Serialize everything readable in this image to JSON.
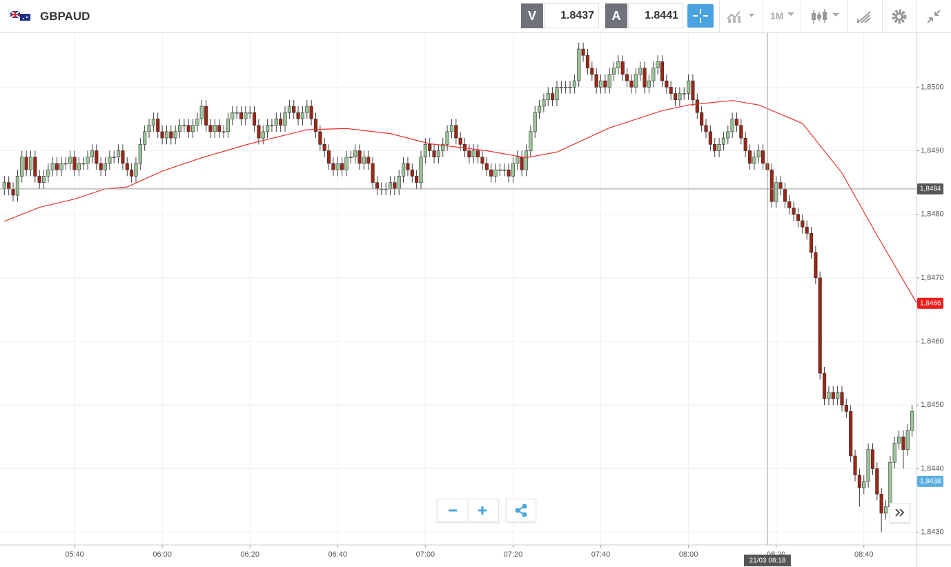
{
  "header": {
    "symbol": "GBPAUD",
    "sell_label": "V",
    "sell": 1.8437,
    "buy_label": "A",
    "buy": 1.8441,
    "timeframe": "1M"
  },
  "chart_data": {
    "type": "candlestick",
    "x": [
      "05:24",
      "05:25",
      "05:26",
      "05:27",
      "05:28",
      "05:29",
      "05:30",
      "05:31",
      "05:32",
      "05:33",
      "05:34",
      "05:35",
      "05:36",
      "05:37",
      "05:38",
      "05:39",
      "05:40",
      "05:41",
      "05:42",
      "05:43",
      "05:44",
      "05:45",
      "05:46",
      "05:47",
      "05:48",
      "05:49",
      "05:50",
      "05:51",
      "05:52",
      "05:53",
      "05:54",
      "05:55",
      "05:56",
      "05:57",
      "05:58",
      "05:59",
      "06:00",
      "06:01",
      "06:02",
      "06:03",
      "06:04",
      "06:05",
      "06:06",
      "06:07",
      "06:08",
      "06:09",
      "06:10",
      "06:11",
      "06:12",
      "06:13",
      "06:14",
      "06:15",
      "06:16",
      "06:17",
      "06:18",
      "06:19",
      "06:20",
      "06:21",
      "06:22",
      "06:23",
      "06:24",
      "06:25",
      "06:26",
      "06:27",
      "06:28",
      "06:29",
      "06:30",
      "06:31",
      "06:32",
      "06:33",
      "06:34",
      "06:35",
      "06:36",
      "06:37",
      "06:38",
      "06:39",
      "06:40",
      "06:41",
      "06:42",
      "06:43",
      "06:44",
      "06:45",
      "06:46",
      "06:47",
      "06:48",
      "06:49",
      "06:50",
      "06:51",
      "06:52",
      "06:53",
      "06:54",
      "06:55",
      "06:56",
      "06:57",
      "06:58",
      "06:59",
      "07:00",
      "07:01",
      "07:02",
      "07:03",
      "07:04",
      "07:05",
      "07:06",
      "07:07",
      "07:08",
      "07:09",
      "07:10",
      "07:11",
      "07:12",
      "07:13",
      "07:14",
      "07:15",
      "07:16",
      "07:17",
      "07:18",
      "07:19",
      "07:20",
      "07:21",
      "07:22",
      "07:23",
      "07:24",
      "07:25",
      "07:26",
      "07:27",
      "07:28",
      "07:29",
      "07:30",
      "07:31",
      "07:32",
      "07:33",
      "07:34",
      "07:35",
      "07:36",
      "07:37",
      "07:38",
      "07:39",
      "07:40",
      "07:41",
      "07:42",
      "07:43",
      "07:44",
      "07:45",
      "07:46",
      "07:47",
      "07:48",
      "07:49",
      "07:50",
      "07:51",
      "07:52",
      "07:53",
      "07:54",
      "07:55",
      "07:56",
      "07:57",
      "07:58",
      "07:59",
      "08:00",
      "08:01",
      "08:02",
      "08:03",
      "08:04",
      "08:05",
      "08:06",
      "08:07",
      "08:08",
      "08:09",
      "08:10",
      "08:11",
      "08:12",
      "08:13",
      "08:14",
      "08:15",
      "08:16",
      "08:17",
      "08:18",
      "08:19",
      "08:20",
      "08:21",
      "08:22",
      "08:23",
      "08:24",
      "08:25",
      "08:26",
      "08:27",
      "08:28",
      "08:29",
      "08:30",
      "08:31",
      "08:32",
      "08:33",
      "08:34",
      "08:35",
      "08:36",
      "08:37",
      "08:38",
      "08:39",
      "08:40",
      "08:41",
      "08:42",
      "08:43",
      "08:44",
      "08:45",
      "08:46",
      "08:47",
      "08:48",
      "08:49",
      "08:50",
      "08:51"
    ],
    "open": [
      1.8484,
      1.8485,
      1.8484,
      1.8483,
      1.8486,
      1.8489,
      1.8487,
      1.8489,
      1.8486,
      1.8485,
      1.8486,
      1.8487,
      1.8488,
      1.8487,
      1.8488,
      1.8488,
      1.8489,
      1.8487,
      1.8488,
      1.8488,
      1.8489,
      1.849,
      1.8488,
      1.8487,
      1.8488,
      1.8489,
      1.8489,
      1.849,
      1.8488,
      1.8487,
      1.8486,
      1.8488,
      1.8491,
      1.8493,
      1.8494,
      1.8495,
      1.8493,
      1.8492,
      1.8493,
      1.8492,
      1.8493,
      1.8494,
      1.8494,
      1.8493,
      1.8494,
      1.8495,
      1.8497,
      1.8494,
      1.8493,
      1.8494,
      1.8493,
      1.8493,
      1.8495,
      1.8496,
      1.8496,
      1.8495,
      1.8496,
      1.8496,
      1.8494,
      1.8492,
      1.8493,
      1.8494,
      1.8494,
      1.8495,
      1.8494,
      1.8496,
      1.8497,
      1.8496,
      1.8495,
      1.8496,
      1.8497,
      1.8495,
      1.8493,
      1.8491,
      1.849,
      1.8488,
      1.8487,
      1.8488,
      1.8487,
      1.8489,
      1.8489,
      1.849,
      1.8488,
      1.8489,
      1.8488,
      1.8485,
      1.8484,
      1.8484,
      1.8484,
      1.8485,
      1.8484,
      1.8486,
      1.8488,
      1.8487,
      1.8486,
      1.8485,
      1.8489,
      1.8491,
      1.849,
      1.8489,
      1.849,
      1.8491,
      1.8493,
      1.8494,
      1.8492,
      1.8491,
      1.849,
      1.8489,
      1.849,
      1.8489,
      1.8488,
      1.8487,
      1.8486,
      1.8487,
      1.8487,
      1.8487,
      1.8486,
      1.8488,
      1.8489,
      1.8487,
      1.849,
      1.8493,
      1.8496,
      1.8497,
      1.8498,
      1.8499,
      1.8498,
      1.85,
      1.85,
      1.85,
      1.85,
      1.8501,
      1.8506,
      1.8505,
      1.8503,
      1.8502,
      1.85,
      1.8501,
      1.85,
      1.8502,
      1.8503,
      1.8504,
      1.8502,
      1.8501,
      1.85,
      1.8502,
      1.8503,
      1.85,
      1.8501,
      1.8503,
      1.8504,
      1.8501,
      1.85,
      1.8499,
      1.8498,
      1.8499,
      1.8499,
      1.8501,
      1.8498,
      1.8496,
      1.8494,
      1.8493,
      1.8491,
      1.849,
      1.8491,
      1.8492,
      1.8493,
      1.8495,
      1.8494,
      1.8492,
      1.849,
      1.8488,
      1.8489,
      1.849,
      1.8488,
      1.8487,
      1.8482,
      1.8485,
      1.8484,
      1.8482,
      1.8481,
      1.848,
      1.8479,
      1.8478,
      1.8477,
      1.8474,
      1.847,
      1.8455,
      1.8451,
      1.8452,
      1.8451,
      1.8452,
      1.845,
      1.8449,
      1.8442,
      1.8439,
      1.8437,
      1.8438,
      1.8443,
      1.844,
      1.8436,
      1.8433,
      1.8434,
      1.8441,
      1.8444,
      1.8445,
      1.8443,
      1.8446
    ],
    "high": [
      1.8486,
      1.8486,
      1.8485,
      1.8487,
      1.849,
      1.849,
      1.849,
      1.849,
      1.8487,
      1.8487,
      1.8488,
      1.8489,
      1.8489,
      1.8489,
      1.8489,
      1.849,
      1.849,
      1.8489,
      1.8489,
      1.849,
      1.8491,
      1.8491,
      1.8489,
      1.8489,
      1.849,
      1.849,
      1.8491,
      1.8491,
      1.8489,
      1.8488,
      1.8489,
      1.8492,
      1.8494,
      1.8495,
      1.8496,
      1.8496,
      1.8494,
      1.8494,
      1.8494,
      1.8494,
      1.8495,
      1.8495,
      1.8495,
      1.8495,
      1.8496,
      1.8498,
      1.8498,
      1.8495,
      1.8495,
      1.8495,
      1.8494,
      1.8496,
      1.8497,
      1.8497,
      1.8497,
      1.8497,
      1.8497,
      1.8497,
      1.8495,
      1.8494,
      1.8495,
      1.8495,
      1.8496,
      1.8496,
      1.8497,
      1.8498,
      1.8498,
      1.8497,
      1.8497,
      1.8498,
      1.8498,
      1.8496,
      1.8494,
      1.8492,
      1.8491,
      1.8489,
      1.8489,
      1.8489,
      1.849,
      1.849,
      1.8491,
      1.8491,
      1.849,
      1.849,
      1.8489,
      1.8486,
      1.8485,
      1.8485,
      1.8486,
      1.8486,
      1.8487,
      1.8489,
      1.8489,
      1.8488,
      1.8487,
      1.849,
      1.8492,
      1.8492,
      1.8491,
      1.8491,
      1.8492,
      1.8494,
      1.8495,
      1.8495,
      1.8493,
      1.8492,
      1.8491,
      1.8491,
      1.8491,
      1.849,
      1.8489,
      1.8488,
      1.8488,
      1.8488,
      1.8488,
      1.8488,
      1.8489,
      1.849,
      1.849,
      1.8491,
      1.8494,
      1.8497,
      1.8498,
      1.8499,
      1.85,
      1.85,
      1.8501,
      1.8501,
      1.8501,
      1.8501,
      1.8502,
      1.8507,
      1.8507,
      1.8506,
      1.8504,
      1.8503,
      1.8502,
      1.8502,
      1.8503,
      1.8504,
      1.8505,
      1.8505,
      1.8503,
      1.8502,
      1.8503,
      1.8504,
      1.8504,
      1.8502,
      1.8504,
      1.8505,
      1.8505,
      1.8502,
      1.8501,
      1.85,
      1.85,
      1.85,
      1.8502,
      1.8502,
      1.8499,
      1.8497,
      1.8495,
      1.8494,
      1.8492,
      1.8492,
      1.8493,
      1.8494,
      1.8496,
      1.8496,
      1.8495,
      1.8493,
      1.8491,
      1.849,
      1.8491,
      1.8491,
      1.8489,
      1.8488,
      1.8486,
      1.8486,
      1.8485,
      1.8483,
      1.8482,
      1.8481,
      1.848,
      1.8479,
      1.8478,
      1.8475,
      1.8471,
      1.8456,
      1.8453,
      1.8453,
      1.8453,
      1.8453,
      1.8451,
      1.845,
      1.8443,
      1.844,
      1.8439,
      1.8444,
      1.8444,
      1.8441,
      1.8437,
      1.8435,
      1.8442,
      1.8445,
      1.8446,
      1.8446,
      1.8447,
      1.845
    ],
    "low": [
      1.8483,
      1.8483,
      1.8482,
      1.8482,
      1.8485,
      1.8486,
      1.8486,
      1.8485,
      1.8484,
      1.8484,
      1.8485,
      1.8486,
      1.8486,
      1.8486,
      1.8487,
      1.8487,
      1.8486,
      1.8486,
      1.8487,
      1.8487,
      1.8488,
      1.8487,
      1.8486,
      1.8486,
      1.8487,
      1.8488,
      1.8488,
      1.8487,
      1.8486,
      1.8485,
      1.8485,
      1.8487,
      1.849,
      1.8492,
      1.8493,
      1.8492,
      1.8491,
      1.8491,
      1.8491,
      1.8491,
      1.8492,
      1.8493,
      1.8492,
      1.8492,
      1.8493,
      1.8494,
      1.8493,
      1.8492,
      1.8492,
      1.8492,
      1.8492,
      1.8492,
      1.8494,
      1.8495,
      1.8494,
      1.8494,
      1.8495,
      1.8493,
      1.8491,
      1.8491,
      1.8492,
      1.8493,
      1.8493,
      1.8493,
      1.8493,
      1.8495,
      1.8495,
      1.8494,
      1.8494,
      1.8495,
      1.8494,
      1.8492,
      1.849,
      1.8489,
      1.8487,
      1.8486,
      1.8486,
      1.8486,
      1.8486,
      1.8488,
      1.8488,
      1.8487,
      1.8487,
      1.8487,
      1.8484,
      1.8483,
      1.8483,
      1.8483,
      1.8483,
      1.8483,
      1.8483,
      1.8485,
      1.8486,
      1.8485,
      1.8484,
      1.8484,
      1.8488,
      1.8489,
      1.8488,
      1.8488,
      1.8489,
      1.849,
      1.8492,
      1.8491,
      1.849,
      1.8489,
      1.8488,
      1.8488,
      1.8488,
      1.8487,
      1.8486,
      1.8485,
      1.8485,
      1.8486,
      1.8486,
      1.8485,
      1.8485,
      1.8487,
      1.8486,
      1.8486,
      1.8489,
      1.8492,
      1.8495,
      1.8496,
      1.8497,
      1.8497,
      1.8497,
      1.8499,
      1.8499,
      1.8499,
      1.8499,
      1.85,
      1.8504,
      1.8502,
      1.8501,
      1.8499,
      1.8499,
      1.8499,
      1.8499,
      1.8501,
      1.8502,
      1.8501,
      1.85,
      1.8499,
      1.8499,
      1.8501,
      1.8499,
      1.8499,
      1.85,
      1.8502,
      1.85,
      1.8499,
      1.8498,
      1.8497,
      1.8497,
      1.8498,
      1.8498,
      1.8497,
      1.8495,
      1.8493,
      1.8492,
      1.849,
      1.8489,
      1.8489,
      1.849,
      1.8491,
      1.8492,
      1.8493,
      1.8491,
      1.8489,
      1.8487,
      1.8487,
      1.8488,
      1.8487,
      1.8486,
      1.8481,
      1.8481,
      1.8483,
      1.8481,
      1.848,
      1.8479,
      1.8478,
      1.8477,
      1.8476,
      1.8473,
      1.8469,
      1.8454,
      1.845,
      1.845,
      1.845,
      1.845,
      1.8449,
      1.8448,
      1.8441,
      1.8438,
      1.8434,
      1.8436,
      1.8437,
      1.8439,
      1.8435,
      1.843,
      1.8432,
      1.8433,
      1.844,
      1.8443,
      1.844,
      1.8442,
      1.8445
    ],
    "close": [
      1.8485,
      1.8484,
      1.8483,
      1.8486,
      1.8489,
      1.8487,
      1.8489,
      1.8486,
      1.8485,
      1.8486,
      1.8487,
      1.8488,
      1.8487,
      1.8488,
      1.8488,
      1.8489,
      1.8487,
      1.8488,
      1.8488,
      1.8489,
      1.849,
      1.8488,
      1.8487,
      1.8488,
      1.8489,
      1.8489,
      1.849,
      1.8488,
      1.8487,
      1.8486,
      1.8488,
      1.8491,
      1.8493,
      1.8494,
      1.8495,
      1.8493,
      1.8492,
      1.8493,
      1.8492,
      1.8493,
      1.8494,
      1.8494,
      1.8493,
      1.8494,
      1.8495,
      1.8497,
      1.8494,
      1.8493,
      1.8494,
      1.8493,
      1.8493,
      1.8495,
      1.8496,
      1.8496,
      1.8495,
      1.8496,
      1.8496,
      1.8494,
      1.8492,
      1.8493,
      1.8494,
      1.8494,
      1.8495,
      1.8494,
      1.8496,
      1.8497,
      1.8496,
      1.8495,
      1.8496,
      1.8497,
      1.8495,
      1.8493,
      1.8491,
      1.849,
      1.8488,
      1.8487,
      1.8488,
      1.8487,
      1.8489,
      1.8489,
      1.849,
      1.8488,
      1.8489,
      1.8488,
      1.8485,
      1.8484,
      1.8484,
      1.8484,
      1.8485,
      1.8484,
      1.8486,
      1.8488,
      1.8487,
      1.8486,
      1.8485,
      1.8489,
      1.8491,
      1.849,
      1.8489,
      1.849,
      1.8491,
      1.8493,
      1.8494,
      1.8492,
      1.8491,
      1.849,
      1.8489,
      1.849,
      1.8489,
      1.8488,
      1.8487,
      1.8486,
      1.8487,
      1.8487,
      1.8487,
      1.8486,
      1.8488,
      1.8489,
      1.8487,
      1.849,
      1.8493,
      1.8496,
      1.8497,
      1.8498,
      1.8499,
      1.8498,
      1.85,
      1.85,
      1.85,
      1.85,
      1.8501,
      1.8506,
      1.8505,
      1.8503,
      1.8502,
      1.85,
      1.8501,
      1.85,
      1.8502,
      1.8503,
      1.8504,
      1.8502,
      1.8501,
      1.85,
      1.8502,
      1.8503,
      1.85,
      1.8501,
      1.8503,
      1.8504,
      1.8501,
      1.85,
      1.8499,
      1.8498,
      1.8499,
      1.8499,
      1.8501,
      1.8498,
      1.8496,
      1.8494,
      1.8493,
      1.8491,
      1.849,
      1.8491,
      1.8492,
      1.8493,
      1.8495,
      1.8494,
      1.8492,
      1.849,
      1.8488,
      1.8489,
      1.849,
      1.8488,
      1.8487,
      1.8482,
      1.8485,
      1.8484,
      1.8482,
      1.8481,
      1.848,
      1.8479,
      1.8478,
      1.8477,
      1.8474,
      1.847,
      1.8455,
      1.8451,
      1.8452,
      1.8451,
      1.8452,
      1.845,
      1.8449,
      1.8442,
      1.8439,
      1.8437,
      1.8438,
      1.8443,
      1.844,
      1.8436,
      1.8433,
      1.8434,
      1.8441,
      1.8444,
      1.8445,
      1.8443,
      1.8446,
      1.8449
    ],
    "up_color": "#9cc59a",
    "down_color": "#9b2716",
    "ma": {
      "color": "#e8302a",
      "x": [
        "05:24",
        "05:32",
        "05:40",
        "05:47",
        "05:52",
        "06:00",
        "06:09",
        "06:20",
        "06:33",
        "06:42",
        "06:52",
        "07:01",
        "07:14",
        "07:23",
        "07:30",
        "07:42",
        "07:54",
        "08:00",
        "08:10",
        "08:16",
        "08:26",
        "08:35",
        "08:43",
        "08:52"
      ],
      "values": [
        1.84789,
        1.84811,
        1.84824,
        1.8484,
        1.84843,
        1.84868,
        1.84889,
        1.84911,
        1.84933,
        1.84935,
        1.84927,
        1.84911,
        1.849,
        1.84889,
        1.84898,
        1.84936,
        1.84963,
        1.84972,
        1.84979,
        1.84972,
        1.84943,
        1.84865,
        1.84767,
        1.84661
      ]
    },
    "xlim": [
      "05:23",
      "08:52"
    ],
    "xticks": [
      "05:40",
      "06:00",
      "06:20",
      "06:40",
      "07:00",
      "07:20",
      "07:40",
      "08:00",
      "08:20",
      "08:40"
    ],
    "ylim": [
      1.8428,
      1.85085
    ],
    "yticks": [
      {
        "value": 1.843,
        "label": "1,8430"
      },
      {
        "value": 1.844,
        "label": "1,8440"
      },
      {
        "value": 1.845,
        "label": "1,8450"
      },
      {
        "value": 1.846,
        "label": "1,8460"
      },
      {
        "value": 1.847,
        "label": "1,8470"
      },
      {
        "value": 1.848,
        "label": "1,8480"
      },
      {
        "value": 1.849,
        "label": "1,8490"
      },
      {
        "value": 1.85,
        "label": "1,8500"
      }
    ],
    "grid": true,
    "crosshair": {
      "x": "08:18",
      "x_label": "21/03 08:18",
      "y": {
        "value": 1.8484,
        "label": "1,8484"
      }
    },
    "ma_last": {
      "value": 1.8466,
      "label": "1,8466"
    },
    "price_marker": {
      "value": 1.8438,
      "label": "1,8438"
    }
  }
}
